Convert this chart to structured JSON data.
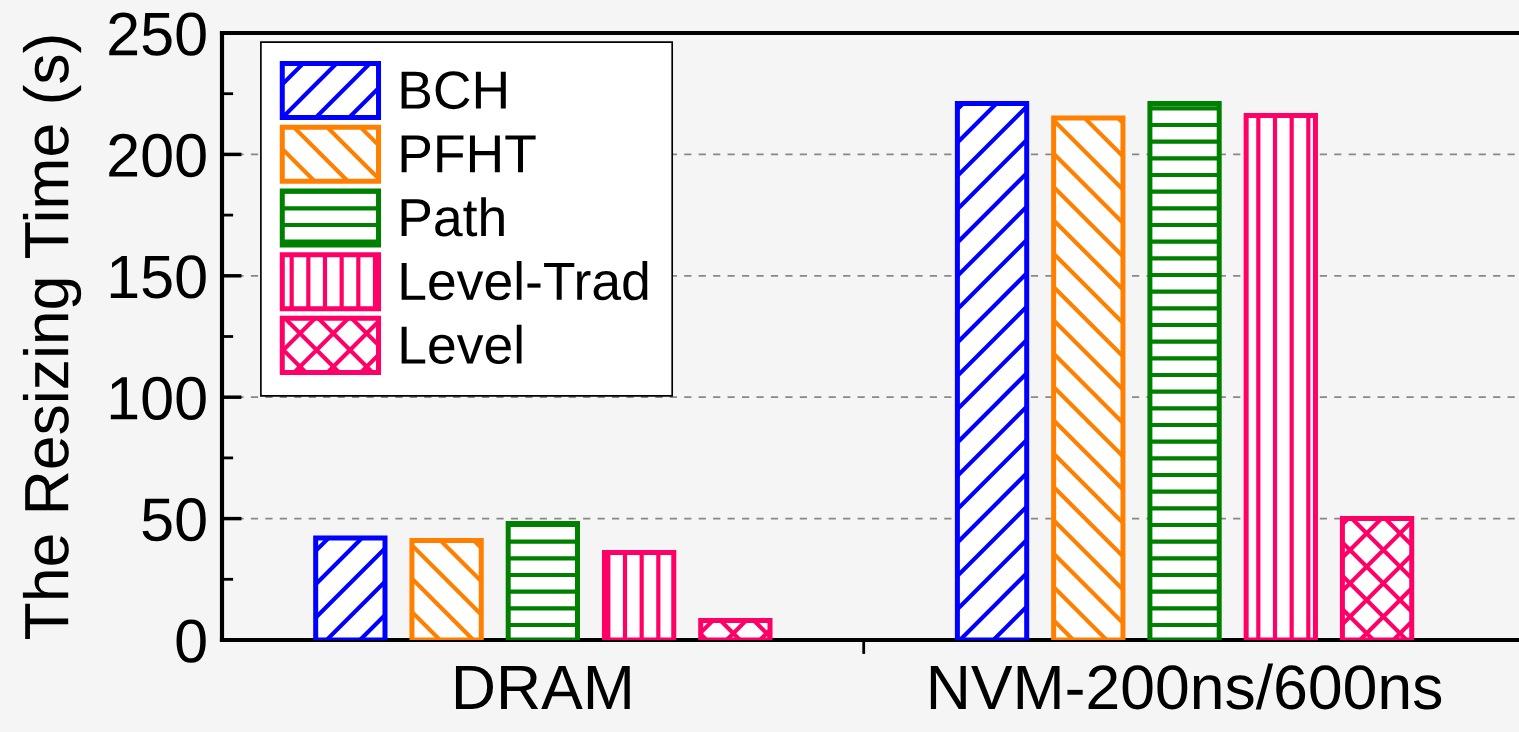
{
  "chart_data": {
    "type": "bar",
    "ylabel": "The Resizing Time (s)",
    "categories": [
      "DRAM",
      "NVM-200ns/600ns"
    ],
    "series": [
      {
        "name": "BCH",
        "color": "#0000ff",
        "values": [
          42,
          221
        ]
      },
      {
        "name": "PFHT",
        "color": "#ff8000",
        "values": [
          41,
          215
        ]
      },
      {
        "name": "Path",
        "color": "#008000",
        "values": [
          48,
          221
        ]
      },
      {
        "name": "Level-Trad",
        "color": "#ff0066",
        "values": [
          36,
          216
        ]
      },
      {
        "name": "Level",
        "color": "#ff0066",
        "values": [
          8,
          50
        ]
      }
    ],
    "ylim": [
      0,
      250
    ],
    "yticks": [
      0,
      {
        "value": 25,
        "label": null
      },
      50,
      {
        "value": 75,
        "label": null
      },
      100,
      {
        "value": 125,
        "label": null
      },
      150,
      {
        "value": 175,
        "label": null
      },
      200,
      {
        "value": 225,
        "label": null
      },
      250
    ],
    "grid": "y",
    "legend": "top left"
  }
}
